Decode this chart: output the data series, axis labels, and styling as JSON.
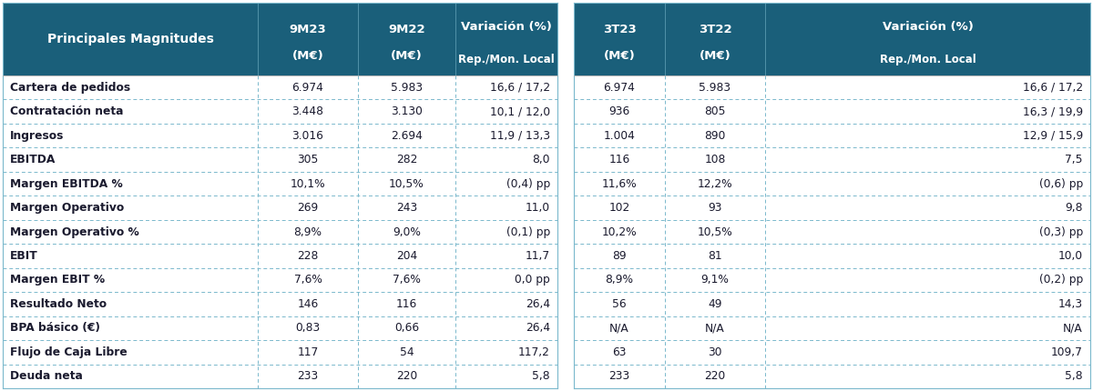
{
  "header_bg": "#1a5f7a",
  "header_text_color": "#ffffff",
  "row_bg": "#ffffff",
  "divider_color": "#7ab8cc",
  "border_color": "#7ab8cc",
  "text_color": "#1a1a2e",
  "col_headers_line1": [
    "9M23",
    "9M22",
    "Variación (%)"
  ],
  "col_headers_line2": [
    "(M€)",
    "(M€)",
    "Rep./Mon. Local"
  ],
  "col_headers_right_line1": [
    "3T23",
    "3T22",
    "Variación (%)"
  ],
  "col_headers_right_line2": [
    "(M€)",
    "(M€)",
    "Rep./Mon. Local"
  ],
  "rows": [
    [
      "Cartera de pedidos",
      "6.974",
      "5.983",
      "16,6 / 17,2",
      "6.974",
      "5.983",
      "16,6 / 17,2"
    ],
    [
      "Contratación neta",
      "3.448",
      "3.130",
      "10,1 / 12,0",
      "936",
      "805",
      "16,3 / 19,9"
    ],
    [
      "Ingresos",
      "3.016",
      "2.694",
      "11,9 / 13,3",
      "1.004",
      "890",
      "12,9 / 15,9"
    ],
    [
      "EBITDA",
      "305",
      "282",
      "8,0",
      "116",
      "108",
      "7,5"
    ],
    [
      "Margen EBITDA %",
      "10,1%",
      "10,5%",
      "(0,4) pp",
      "11,6%",
      "12,2%",
      "(0,6) pp"
    ],
    [
      "Margen Operativo",
      "269",
      "243",
      "11,0",
      "102",
      "93",
      "9,8"
    ],
    [
      "Margen Operativo %",
      "8,9%",
      "9,0%",
      "(0,1) pp",
      "10,2%",
      "10,5%",
      "(0,3) pp"
    ],
    [
      "EBIT",
      "228",
      "204",
      "11,7",
      "89",
      "81",
      "10,0"
    ],
    [
      "Margen EBIT %",
      "7,6%",
      "7,6%",
      "0,0 pp",
      "8,9%",
      "9,1%",
      "(0,2) pp"
    ],
    [
      "Resultado Neto",
      "146",
      "116",
      "26,4",
      "56",
      "49",
      "14,3"
    ],
    [
      "BPA básico (€)",
      "0,83",
      "0,66",
      "26,4",
      "N/A",
      "N/A",
      "N/A"
    ],
    [
      "Flujo de Caja Libre",
      "117",
      "54",
      "117,2",
      "63",
      "30",
      "109,7"
    ],
    [
      "Deuda neta",
      "233",
      "220",
      "5,8",
      "233",
      "220",
      "5,8"
    ]
  ]
}
